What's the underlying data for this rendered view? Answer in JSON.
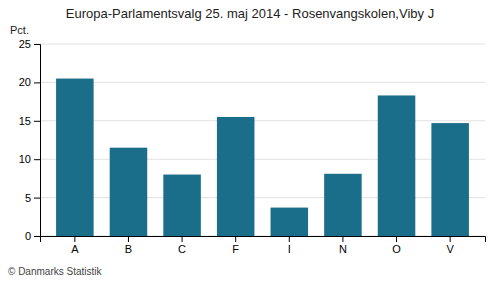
{
  "chart_data": {
    "type": "bar",
    "title": "Europa-Parlamentsvalg 25. maj 2014 - Rosenvangskolen,Viby J",
    "ylabel": "Pct.",
    "annotations": [
      "© Danmarks Statistik"
    ],
    "categories": [
      "A",
      "B",
      "C",
      "F",
      "I",
      "N",
      "O",
      "V"
    ],
    "values": [
      20.5,
      11.5,
      8.0,
      15.5,
      3.7,
      8.1,
      18.3,
      14.7
    ],
    "color": "#1a6e8a",
    "ylim": [
      0,
      25
    ],
    "yticks": [
      0,
      5,
      10,
      15,
      20,
      25
    ],
    "grid": true
  }
}
